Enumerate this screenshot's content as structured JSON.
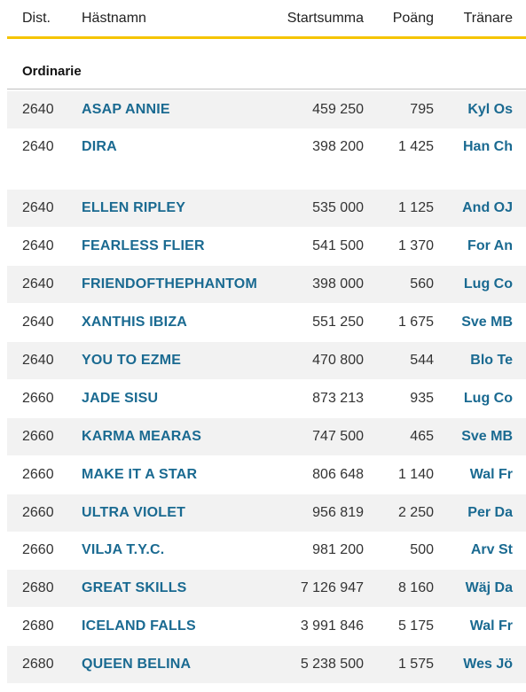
{
  "columns": {
    "dist": "Dist.",
    "name": "Hästnamn",
    "startsumma": "Startsumma",
    "poang": "Poäng",
    "tranare": "Tränare"
  },
  "section_title": "Ordinarie",
  "rows": [
    {
      "dist": "2640",
      "name": "ASAP ANNIE",
      "startsumma": "459 250",
      "poang": "795",
      "tranare": "Kyl Os"
    },
    {
      "dist": "2640",
      "name": "DIRA",
      "startsumma": "398 200",
      "poang": "1 425",
      "tranare": "Han Ch"
    },
    {
      "dist": "2640",
      "name": "ELLEN RIPLEY",
      "startsumma": "535 000",
      "poang": "1 125",
      "tranare": "And OJ"
    },
    {
      "dist": "2640",
      "name": "FEARLESS FLIER",
      "startsumma": "541 500",
      "poang": "1 370",
      "tranare": "For An"
    },
    {
      "dist": "2640",
      "name": "FRIENDOFTHEPHANTOM",
      "startsumma": "398 000",
      "poang": "560",
      "tranare": "Lug Co"
    },
    {
      "dist": "2640",
      "name": "XANTHIS IBIZA",
      "startsumma": "551 250",
      "poang": "1 675",
      "tranare": "Sve MB"
    },
    {
      "dist": "2640",
      "name": "YOU TO EZME",
      "startsumma": "470 800",
      "poang": "544",
      "tranare": "Blo Te"
    },
    {
      "dist": "2660",
      "name": "JADE SISU",
      "startsumma": "873 213",
      "poang": "935",
      "tranare": "Lug Co"
    },
    {
      "dist": "2660",
      "name": "KARMA MEARAS",
      "startsumma": "747 500",
      "poang": "465",
      "tranare": "Sve MB"
    },
    {
      "dist": "2660",
      "name": "MAKE IT A STAR",
      "startsumma": "806 648",
      "poang": "1 140",
      "tranare": "Wal Fr"
    },
    {
      "dist": "2660",
      "name": "ULTRA VIOLET",
      "startsumma": "956 819",
      "poang": "2 250",
      "tranare": "Per Da"
    },
    {
      "dist": "2660",
      "name": "VILJA T.Y.C.",
      "startsumma": "981 200",
      "poang": "500",
      "tranare": "Arv St"
    },
    {
      "dist": "2680",
      "name": "GREAT SKILLS",
      "startsumma": "7 126 947",
      "poang": "8 160",
      "tranare": "Wäj Da"
    },
    {
      "dist": "2680",
      "name": "ICELAND FALLS",
      "startsumma": "3 991 846",
      "poang": "5 175",
      "tranare": "Wal Fr"
    },
    {
      "dist": "2680",
      "name": "QUEEN BELINA",
      "startsumma": "5 238 500",
      "poang": "1 575",
      "tranare": "Wes Jö"
    }
  ]
}
